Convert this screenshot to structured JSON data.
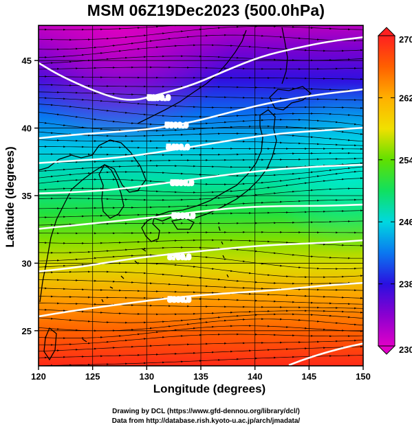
{
  "title": "MSM 06Z19Dec2023 (500.0hPa)",
  "x_axis": {
    "label": "Longitude (degrees)",
    "ticks": [
      120,
      125,
      130,
      135,
      140,
      145,
      150
    ],
    "range": [
      120,
      150
    ]
  },
  "y_axis": {
    "label": "Latitude  (degrees)",
    "ticks": [
      25,
      30,
      35,
      40,
      45
    ],
    "range": [
      22.4,
      47.6
    ]
  },
  "colorbar": {
    "ticks": [
      230,
      238,
      246,
      254,
      262,
      270
    ],
    "range": [
      230,
      270
    ],
    "min_label": "230",
    "max_label": "270"
  },
  "contours": [
    {
      "label": "5200.0"
    },
    {
      "label": "5300.0"
    },
    {
      "label": "5400.0"
    },
    {
      "label": "5500.0"
    },
    {
      "label": "5600.0"
    },
    {
      "label": "5700.0"
    },
    {
      "label": "5800.0"
    }
  ],
  "colors": {
    "cold": "#9a00b0",
    "mid": "#18d890",
    "warm": "#ff3a10",
    "contour": "#ffffff"
  },
  "credits": {
    "line1": "Drawing by DCL (https://www.gfd-dennou.org/library/dcl/)",
    "line2": "Data from http://database.rish.kyoto-u.ac.jp/arch/jmadata/"
  }
}
